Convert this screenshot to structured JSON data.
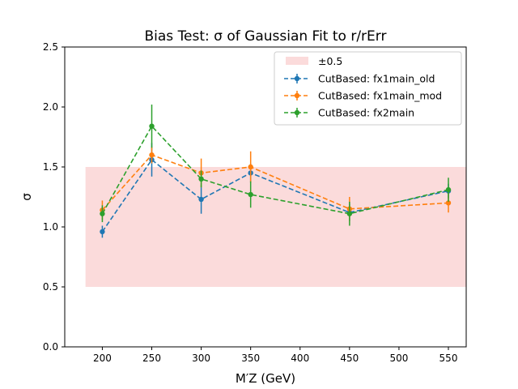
{
  "chart_data": {
    "type": "line",
    "title": "Bias Test: σ of Gaussian Fit to r/rErr",
    "xlabel": "M′Z (GeV)",
    "ylabel": "σ",
    "xlim": [
      162,
      568
    ],
    "ylim": [
      0,
      2.5
    ],
    "xticks": [
      200,
      250,
      300,
      350,
      400,
      450,
      500,
      550
    ],
    "yticks": [
      0.0,
      0.5,
      1.0,
      1.5,
      2.0,
      2.5
    ],
    "grid": false,
    "legend_position": "top-right",
    "band": {
      "name": "±0.5",
      "x": [
        183,
        568
      ],
      "y": [
        0.5,
        1.5
      ],
      "color": "#f8b8b8"
    },
    "x": [
      200,
      250,
      300,
      350,
      450,
      550
    ],
    "series": [
      {
        "name": "CutBased: fx1main_old",
        "color": "#1f77b4",
        "values": [
          0.96,
          1.56,
          1.23,
          1.45,
          1.12,
          1.3
        ],
        "errors": [
          0.05,
          0.14,
          0.12,
          0.08,
          0.07,
          0.06
        ]
      },
      {
        "name": "CutBased: fx1main_mod",
        "color": "#ff7f0e",
        "values": [
          1.14,
          1.6,
          1.45,
          1.5,
          1.15,
          1.2
        ],
        "errors": [
          0.08,
          0.07,
          0.12,
          0.13,
          0.1,
          0.08
        ]
      },
      {
        "name": "CutBased: fx2main",
        "color": "#2ca02c",
        "values": [
          1.11,
          1.84,
          1.4,
          1.27,
          1.11,
          1.31
        ],
        "errors": [
          0.07,
          0.18,
          0.07,
          0.11,
          0.1,
          0.1
        ]
      }
    ]
  }
}
